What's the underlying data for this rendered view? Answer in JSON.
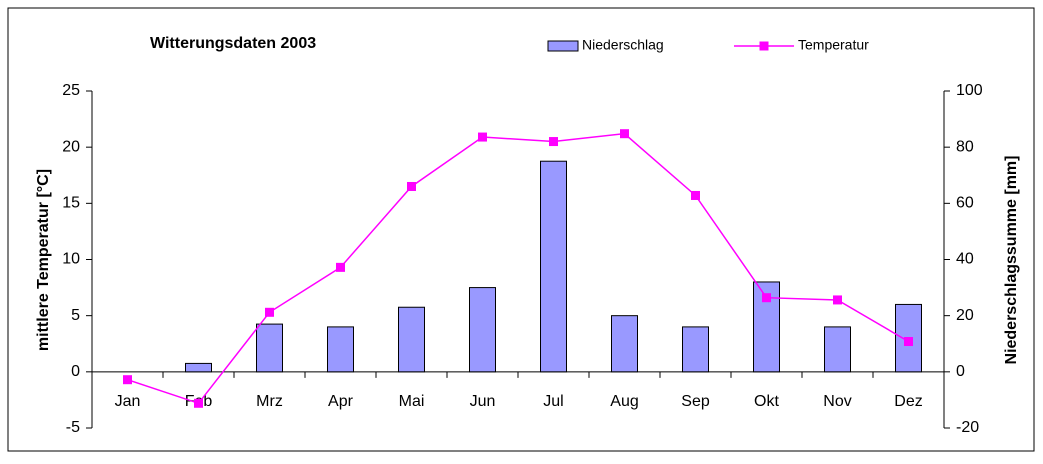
{
  "chart_data": {
    "type": "bar-line",
    "title": "Witterungsdaten 2003",
    "categories": [
      "Jan",
      "Feb",
      "Mrz",
      "Apr",
      "Mai",
      "Jun",
      "Jul",
      "Aug",
      "Sep",
      "Okt",
      "Nov",
      "Dez"
    ],
    "series": [
      {
        "name": "Niederschlag",
        "type": "bar",
        "axis": "y2",
        "color": "#9999ff",
        "values": [
          0,
          3,
          17,
          16,
          23,
          30,
          75,
          20,
          16,
          32,
          16,
          24
        ]
      },
      {
        "name": "Temperatur",
        "type": "line",
        "axis": "y",
        "color": "#ff00ff",
        "values": [
          -0.7,
          -2.8,
          5.3,
          9.3,
          16.5,
          20.9,
          20.5,
          21.2,
          15.7,
          6.6,
          6.4,
          2.7
        ]
      }
    ],
    "ylabel": "mittlere Temperatur [°C]",
    "y2label": "Niederschlagssumme [mm]",
    "ylim": [
      -5,
      25
    ],
    "yticks": [
      -5,
      0,
      5,
      10,
      15,
      20,
      25
    ],
    "y2lim": [
      -20,
      100
    ],
    "y2ticks": [
      -20,
      0,
      20,
      40,
      60,
      80,
      100
    ],
    "legend": "top"
  }
}
